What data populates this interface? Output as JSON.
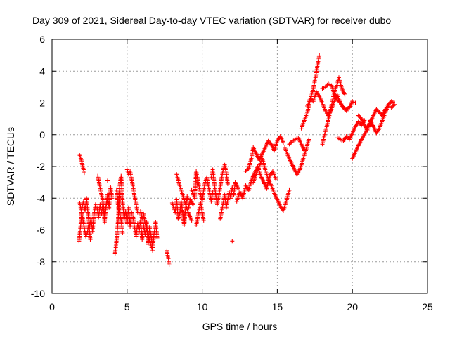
{
  "chart_data": {
    "type": "scatter",
    "title": "Day 309 of 2021, Sidereal Day-to-day VTEC variation (SDTVAR) for receiver dubo",
    "xlabel": "GPS time / hours",
    "ylabel": "SDTVAR / TECUs",
    "xlim": [
      0,
      25
    ],
    "ylim": [
      -10,
      6
    ],
    "xticks": [
      "0",
      "5",
      "10",
      "15",
      "20",
      "25"
    ],
    "yticks": [
      "-10",
      "-8",
      "-6",
      "-4",
      "-2",
      "0",
      "2",
      "4",
      "6"
    ],
    "grid": true,
    "marker": "+",
    "color": "#ff0000",
    "tracks": [
      [
        [
          1.85,
          -1.3
        ],
        [
          1.95,
          -1.6
        ],
        [
          2.05,
          -2.0
        ],
        [
          2.15,
          -2.4
        ]
      ],
      [
        [
          1.8,
          -6.7
        ],
        [
          1.9,
          -5.8
        ],
        [
          2.0,
          -4.6
        ],
        [
          2.1,
          -4.2
        ],
        [
          2.2,
          -4.8
        ],
        [
          2.3,
          -4.0
        ],
        [
          2.4,
          -5.0
        ],
        [
          2.5,
          -5.8
        ],
        [
          2.6,
          -5.3
        ],
        [
          2.7,
          -6.1
        ],
        [
          2.8,
          -5.0
        ],
        [
          2.9,
          -4.4
        ]
      ],
      [
        [
          1.85,
          -4.3
        ],
        [
          1.95,
          -4.8
        ],
        [
          2.05,
          -5.3
        ],
        [
          2.15,
          -5.9
        ],
        [
          2.25,
          -6.4
        ],
        [
          2.35,
          -6.2
        ],
        [
          2.45,
          -5.6
        ],
        [
          2.55,
          -6.6
        ]
      ],
      [
        [
          3.0,
          -4.6
        ],
        [
          3.1,
          -5.2
        ],
        [
          3.2,
          -4.4
        ],
        [
          3.3,
          -5.0
        ],
        [
          3.4,
          -4.2
        ],
        [
          3.5,
          -5.5
        ],
        [
          3.6,
          -4.5
        ],
        [
          3.7,
          -3.8
        ],
        [
          3.8,
          -4.6
        ],
        [
          3.9,
          -3.3
        ],
        [
          4.0,
          -4.0
        ]
      ],
      [
        [
          3.05,
          -2.6
        ],
        [
          3.15,
          -3.1
        ],
        [
          3.25,
          -3.6
        ],
        [
          3.35,
          -4.0
        ],
        [
          3.5,
          -5.0
        ],
        [
          3.65,
          -4.3
        ],
        [
          3.8,
          -3.7
        ]
      ],
      [
        [
          3.7,
          -2.9
        ]
      ],
      [
        [
          4.2,
          -7.5
        ],
        [
          4.3,
          -6.6
        ],
        [
          4.4,
          -5.4
        ],
        [
          4.5,
          -3.3
        ],
        [
          4.6,
          -2.6
        ],
        [
          4.7,
          -4.2
        ],
        [
          4.8,
          -5.3
        ],
        [
          4.9,
          -4.8
        ],
        [
          5.0,
          -5.6
        ],
        [
          5.1,
          -4.6
        ],
        [
          5.2,
          -5.8
        ],
        [
          5.3,
          -4.9
        ]
      ],
      [
        [
          4.3,
          -3.5
        ],
        [
          4.4,
          -4.5
        ],
        [
          4.5,
          -4.9
        ],
        [
          4.6,
          -5.4
        ],
        [
          4.7,
          -6.2
        ]
      ],
      [
        [
          5.0,
          -2.2
        ],
        [
          5.1,
          -2.5
        ],
        [
          5.2,
          -2.3
        ],
        [
          5.3,
          -2.8
        ],
        [
          5.4,
          -3.3
        ],
        [
          5.5,
          -3.9
        ],
        [
          5.6,
          -4.4
        ],
        [
          5.7,
          -4.9
        ]
      ],
      [
        [
          5.4,
          -5.2
        ],
        [
          5.5,
          -5.9
        ],
        [
          5.6,
          -6.4
        ],
        [
          5.7,
          -5.6
        ],
        [
          5.8,
          -6.1
        ],
        [
          5.9,
          -5.4
        ],
        [
          6.0,
          -6.6
        ],
        [
          6.1,
          -5.7
        ],
        [
          6.2,
          -6.3
        ],
        [
          6.3,
          -5.5
        ],
        [
          6.4,
          -6.9
        ],
        [
          6.5,
          -5.8
        ],
        [
          6.6,
          -6.4
        ],
        [
          6.7,
          -7.1
        ],
        [
          6.8,
          -6.2
        ],
        [
          6.9,
          -5.5
        ],
        [
          7.0,
          -6.5
        ]
      ],
      [
        [
          5.9,
          -4.8
        ],
        [
          6.0,
          -5.3
        ],
        [
          6.1,
          -5.0
        ],
        [
          6.2,
          -5.6
        ],
        [
          6.3,
          -6.0
        ],
        [
          6.4,
          -6.3
        ],
        [
          6.5,
          -6.7
        ],
        [
          6.6,
          -7.0
        ],
        [
          6.7,
          -7.3
        ]
      ],
      [
        [
          7.65,
          -7.3
        ],
        [
          7.7,
          -7.6
        ],
        [
          7.75,
          -7.8
        ],
        [
          7.8,
          -8.2
        ]
      ],
      [
        [
          8.0,
          -4.3
        ],
        [
          8.2,
          -4.9
        ],
        [
          8.3,
          -4.1
        ],
        [
          8.4,
          -5.3
        ],
        [
          8.5,
          -5.0
        ],
        [
          8.6,
          -4.2
        ],
        [
          8.8,
          -5.7
        ],
        [
          8.9,
          -4.6
        ],
        [
          9.0,
          -3.9
        ],
        [
          9.1,
          -4.6
        ],
        [
          9.2,
          -4.1
        ],
        [
          9.4,
          -4.4
        ]
      ],
      [
        [
          8.3,
          -2.5
        ],
        [
          8.5,
          -3.2
        ],
        [
          8.7,
          -3.8
        ],
        [
          8.9,
          -4.4
        ],
        [
          9.1,
          -5.0
        ],
        [
          9.3,
          -5.4
        ]
      ],
      [
        [
          9.3,
          -3.5
        ],
        [
          9.5,
          -4.0
        ],
        [
          9.6,
          -2.3
        ],
        [
          9.7,
          -2.8
        ],
        [
          9.8,
          -3.3
        ],
        [
          9.9,
          -3.8
        ],
        [
          10.0,
          -4.2
        ],
        [
          10.1,
          -3.5
        ],
        [
          10.2,
          -3.0
        ],
        [
          10.3,
          -2.7
        ],
        [
          10.4,
          -3.2
        ],
        [
          10.5,
          -3.7
        ],
        [
          10.6,
          -4.2
        ],
        [
          10.7,
          -3.6
        ]
      ],
      [
        [
          9.6,
          -5.7
        ],
        [
          9.7,
          -5.2
        ],
        [
          9.8,
          -4.7
        ],
        [
          9.9,
          -4.3
        ],
        [
          10.0,
          -4.9
        ],
        [
          10.1,
          -5.4
        ]
      ],
      [
        [
          10.6,
          -2.7
        ],
        [
          10.7,
          -2.2
        ],
        [
          10.8,
          -3.0
        ],
        [
          10.9,
          -3.8
        ],
        [
          11.0,
          -4.4
        ],
        [
          11.1,
          -3.9
        ],
        [
          11.2,
          -3.3
        ],
        [
          11.3,
          -2.7
        ],
        [
          11.4,
          -2.2
        ],
        [
          11.5,
          -1.9
        ],
        [
          11.6,
          -2.4
        ],
        [
          11.7,
          -3.1
        ]
      ],
      [
        [
          11.2,
          -5.3
        ],
        [
          11.3,
          -4.8
        ],
        [
          11.4,
          -4.3
        ],
        [
          11.5,
          -3.8
        ],
        [
          11.6,
          -4.6
        ],
        [
          11.7,
          -4.1
        ],
        [
          11.8,
          -3.6
        ],
        [
          11.9,
          -4.0
        ],
        [
          12.0,
          -3.3
        ],
        [
          12.1,
          -3.8
        ],
        [
          12.2,
          -3.0
        ],
        [
          12.4,
          -3.4
        ]
      ],
      [
        [
          12.0,
          -6.7
        ]
      ],
      [
        [
          12.3,
          -4.2
        ],
        [
          12.5,
          -3.6
        ],
        [
          12.7,
          -4.0
        ],
        [
          12.9,
          -3.2
        ],
        [
          13.1,
          -3.5
        ],
        [
          13.3,
          -2.8
        ],
        [
          13.5,
          -2.4
        ],
        [
          13.7,
          -2.0
        ],
        [
          13.9,
          -2.6
        ],
        [
          14.1,
          -3.0
        ],
        [
          14.3,
          -3.4
        ],
        [
          14.5,
          -2.6
        ],
        [
          14.7,
          -2.3
        ],
        [
          14.9,
          -2.8
        ]
      ],
      [
        [
          12.9,
          -2.3
        ],
        [
          13.1,
          -2.1
        ],
        [
          13.3,
          -1.4
        ],
        [
          13.4,
          -0.8
        ],
        [
          13.6,
          -1.2
        ],
        [
          13.8,
          -1.6
        ],
        [
          14.0,
          -1.2
        ],
        [
          14.2,
          -0.8
        ],
        [
          14.4,
          -0.4
        ],
        [
          14.6,
          -0.6
        ],
        [
          14.8,
          -1.0
        ],
        [
          15.0,
          -0.4
        ],
        [
          15.2,
          -0.1
        ],
        [
          15.4,
          -0.5
        ]
      ],
      [
        [
          13.4,
          -3.0
        ],
        [
          13.6,
          -2.5
        ],
        [
          13.8,
          -2.0
        ],
        [
          14.0,
          -1.5
        ],
        [
          14.2,
          -2.2
        ],
        [
          14.4,
          -2.8
        ],
        [
          14.6,
          -3.2
        ],
        [
          14.8,
          -3.7
        ],
        [
          15.0,
          -4.1
        ],
        [
          15.2,
          -4.5
        ],
        [
          15.4,
          -4.8
        ],
        [
          15.6,
          -4.2
        ],
        [
          15.8,
          -3.5
        ]
      ],
      [
        [
          15.5,
          -0.8
        ],
        [
          15.7,
          -1.3
        ],
        [
          15.9,
          -1.7
        ],
        [
          16.1,
          -2.1
        ],
        [
          16.3,
          -2.5
        ],
        [
          16.5,
          -2.2
        ],
        [
          16.7,
          -1.6
        ],
        [
          16.9,
          -1.0
        ],
        [
          17.1,
          -0.3
        ]
      ],
      [
        [
          15.8,
          -0.6
        ],
        [
          16.0,
          -0.4
        ],
        [
          16.2,
          -0.3
        ],
        [
          16.4,
          -0.2
        ],
        [
          16.6,
          -0.6
        ],
        [
          16.8,
          -1.0
        ]
      ],
      [
        [
          16.6,
          0.4
        ],
        [
          16.8,
          0.9
        ],
        [
          17.0,
          1.4
        ],
        [
          17.2,
          2.2
        ],
        [
          17.4,
          2.9
        ],
        [
          17.5,
          3.4
        ],
        [
          17.6,
          3.9
        ],
        [
          17.7,
          4.5
        ],
        [
          17.8,
          5.0
        ]
      ],
      [
        [
          17.0,
          1.8
        ],
        [
          17.2,
          2.3
        ],
        [
          17.4,
          2.1
        ],
        [
          17.6,
          2.7
        ],
        [
          17.8,
          2.4
        ],
        [
          18.0,
          2.0
        ],
        [
          18.2,
          1.5
        ],
        [
          18.4,
          1.2
        ],
        [
          18.6,
          1.6
        ],
        [
          18.8,
          2.1
        ],
        [
          19.0,
          2.5
        ],
        [
          19.2,
          2.0
        ],
        [
          19.4,
          1.7
        ],
        [
          19.6,
          1.5
        ]
      ],
      [
        [
          18.0,
          -0.6
        ],
        [
          18.2,
          0.2
        ],
        [
          18.4,
          0.9
        ],
        [
          18.6,
          1.8
        ],
        [
          18.8,
          2.7
        ],
        [
          19.0,
          3.2
        ],
        [
          19.1,
          3.6
        ],
        [
          19.3,
          2.9
        ],
        [
          19.5,
          2.5
        ]
      ],
      [
        [
          18.0,
          2.9
        ],
        [
          18.2,
          3.0
        ],
        [
          18.4,
          3.2
        ],
        [
          18.6,
          3.1
        ],
        [
          18.8,
          2.6
        ],
        [
          19.0,
          2.2
        ],
        [
          19.2,
          2.0
        ],
        [
          19.4,
          1.7
        ],
        [
          19.6,
          1.6
        ],
        [
          19.8,
          1.7
        ],
        [
          20.0,
          2.1
        ],
        [
          20.2,
          2.0
        ]
      ],
      [
        [
          19.0,
          -0.2
        ],
        [
          19.2,
          -0.3
        ],
        [
          19.4,
          -0.4
        ],
        [
          19.6,
          -0.1
        ],
        [
          19.8,
          -0.3
        ],
        [
          20.0,
          0.1
        ],
        [
          20.2,
          0.5
        ],
        [
          20.4,
          0.8
        ],
        [
          20.6,
          0.6
        ],
        [
          20.8,
          0.9
        ]
      ],
      [
        [
          20.0,
          -1.5
        ],
        [
          20.2,
          -1.1
        ],
        [
          20.4,
          -0.7
        ],
        [
          20.6,
          -0.3
        ],
        [
          20.8,
          0.0
        ],
        [
          21.0,
          0.4
        ],
        [
          21.2,
          0.8
        ],
        [
          21.4,
          1.2
        ],
        [
          21.6,
          1.6
        ],
        [
          21.8,
          1.4
        ],
        [
          22.0,
          1.2
        ],
        [
          22.2,
          1.6
        ],
        [
          22.4,
          1.8
        ],
        [
          22.6,
          1.7
        ],
        [
          22.8,
          1.9
        ]
      ],
      [
        [
          20.4,
          1.2
        ],
        [
          20.6,
          1.0
        ],
        [
          20.8,
          0.6
        ],
        [
          21.0,
          0.3
        ],
        [
          21.2,
          0.9
        ],
        [
          21.4,
          0.5
        ],
        [
          21.6,
          0.1
        ],
        [
          21.8,
          0.4
        ],
        [
          22.0,
          0.9
        ],
        [
          22.2,
          1.4
        ],
        [
          22.4,
          1.9
        ],
        [
          22.6,
          2.1
        ],
        [
          22.8,
          2.0
        ]
      ]
    ]
  }
}
